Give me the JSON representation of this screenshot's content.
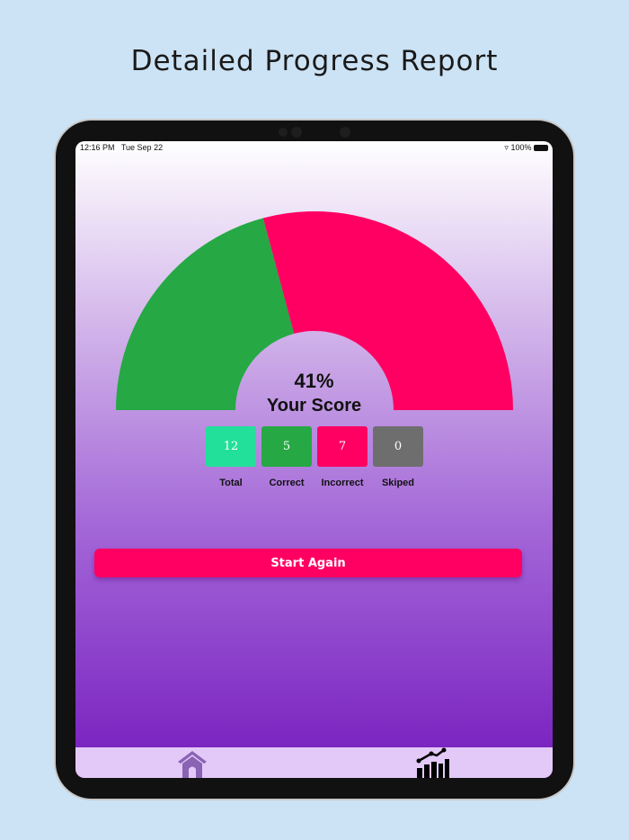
{
  "page_title": "Detailed Progress Report",
  "status_bar": {
    "time": "12:16 PM",
    "date": "Tue Sep 22",
    "battery": "100%"
  },
  "score": {
    "percent": "41%",
    "label": "Your Score",
    "correct_fraction": 0.4167
  },
  "colors": {
    "correct": "#26a844",
    "incorrect": "#ff0062",
    "total": "#22e09a",
    "skipped": "#6e6e6e",
    "tab_bar": "#e3c9f8"
  },
  "stats": [
    {
      "label": "Total",
      "value": "12"
    },
    {
      "label": "Correct",
      "value": "5"
    },
    {
      "label": "Incorrect",
      "value": "7"
    },
    {
      "label": "Skiped",
      "value": "0"
    }
  ],
  "start_again_label": "Start Again",
  "tabs": [
    {
      "icon": "home-icon"
    },
    {
      "icon": "chart-icon"
    }
  ]
}
